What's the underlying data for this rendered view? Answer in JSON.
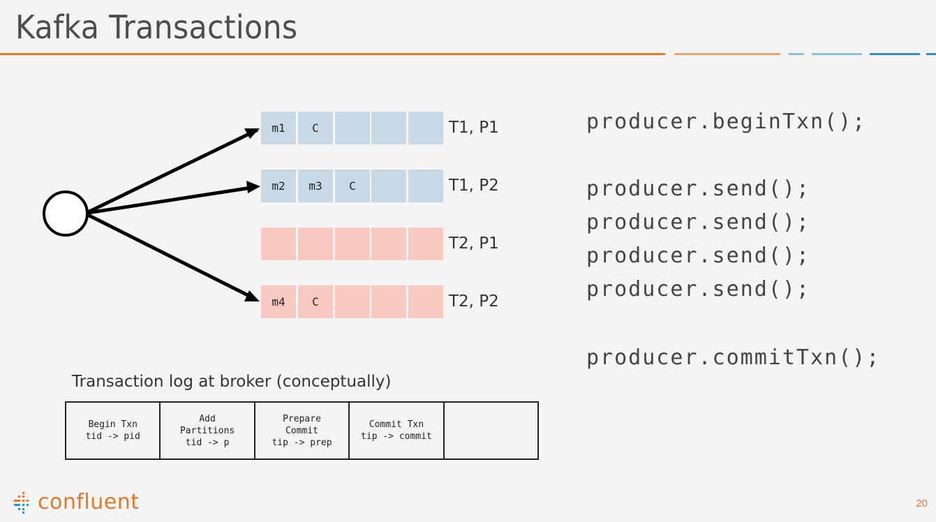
{
  "slide": {
    "title": "Kafka Transactions",
    "page_number": "20"
  },
  "colors": {
    "accent_orange": "#e0792e",
    "accent_blue": "#3a8fc0",
    "committed_blue": "#c9d8e5",
    "uncommitted_pink": "#f8c9c0"
  },
  "partitions": [
    {
      "label": "T1, P1",
      "color": "blue",
      "cells": [
        "m1",
        "C",
        "",
        "",
        ""
      ]
    },
    {
      "label": "T1, P2",
      "color": "blue",
      "cells": [
        "m2",
        "m3",
        "C",
        "",
        ""
      ]
    },
    {
      "label": "T2, P1",
      "color": "pink",
      "cells": [
        "",
        "",
        "",
        "",
        ""
      ]
    },
    {
      "label": "T2, P2",
      "color": "pink",
      "cells": [
        "m4",
        "C",
        "",
        "",
        ""
      ]
    }
  ],
  "code": {
    "begin": "producer.beginTxn();",
    "send_1": "producer.send();",
    "send_2": "producer.send();",
    "send_3": "producer.send();",
    "send_4": "producer.send();",
    "commit": "producer.commitTxn();"
  },
  "transaction_log": {
    "caption": "Transaction log at broker (conceptually)",
    "entries": [
      {
        "line1": "Begin Txn",
        "line2": "tid -> pid",
        "line3": ""
      },
      {
        "line1": "Add",
        "line2": "Partitions",
        "line3": "tid -> p"
      },
      {
        "line1": "Prepare",
        "line2": "Commit",
        "line3": "tip -> prep"
      },
      {
        "line1": "Commit Txn",
        "line2": "tip -> commit",
        "line3": ""
      },
      {
        "line1": "",
        "line2": "",
        "line3": ""
      }
    ]
  },
  "logo": {
    "text": "confluent"
  }
}
